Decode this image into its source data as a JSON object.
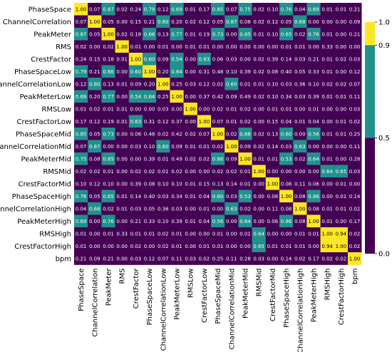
{
  "chart_data": {
    "type": "heatmap",
    "title": "",
    "xlabel": "",
    "ylabel": "",
    "labels": [
      "PhaseSpace",
      "ChannelCorrelation",
      "PeakMeter",
      "RMS",
      "CrestFactor",
      "PhaseSpaceLow",
      "ChannelCorrelationLow",
      "PeakMeterLow",
      "RMSLow",
      "CrestFactorLow",
      "PhaseSpaceMid",
      "ChannelCorrelationMid",
      "PeakMeterMid",
      "RMSMid",
      "CrestFactorMid",
      "PhaseSpaceHigh",
      "ChannelCorrelationHigh",
      "PeakMeterHigh",
      "RMSHigh",
      "CrestFactorHigh",
      "bpm"
    ],
    "matrix": [
      [
        "1.00",
        "0.07",
        "0.87",
        "0.02",
        "0.24",
        "0.79",
        "0.12",
        "0.69",
        "0.01",
        "0.17",
        "0.85",
        "0.07",
        "0.75",
        "0.02",
        "0.10",
        "0.76",
        "0.04",
        "0.69",
        "0.01",
        "0.01",
        "0.21"
      ],
      [
        "0.07",
        "1.00",
        "0.05",
        "0.00",
        "0.15",
        "0.21",
        "0.80",
        "0.20",
        "0.02",
        "0.12",
        "0.05",
        "0.87",
        "0.08",
        "0.02",
        "0.12",
        "0.05",
        "0.68",
        "0.00",
        "0.00",
        "0.00",
        "0.09"
      ],
      [
        "0.87",
        "0.05",
        "1.00",
        "0.02",
        "0.18",
        "0.66",
        "0.13",
        "0.77",
        "0.01",
        "0.19",
        "0.73",
        "0.00",
        "0.85",
        "0.01",
        "0.10",
        "0.65",
        "0.02",
        "0.76",
        "0.01",
        "0.00",
        "0.21"
      ],
      [
        "0.02",
        "0.00",
        "0.02",
        "1.00",
        "0.01",
        "0.00",
        "0.01",
        "0.00",
        "0.01",
        "0.01",
        "0.00",
        "0.00",
        "0.00",
        "0.00",
        "0.00",
        "0.01",
        "0.01",
        "0.00",
        "0.33",
        "0.00",
        "0.00"
      ],
      [
        "0.24",
        "0.15",
        "0.18",
        "0.01",
        "1.00",
        "0.60",
        "0.09",
        "0.54",
        "0.00",
        "0.63",
        "0.06",
        "0.03",
        "0.00",
        "0.02",
        "0.39",
        "0.14",
        "0.03",
        "0.21",
        "0.01",
        "0.02",
        "0.03"
      ],
      [
        "0.79",
        "0.21",
        "0.66",
        "0.00",
        "0.60",
        "1.00",
        "0.20",
        "0.84",
        "0.00",
        "0.31",
        "0.48",
        "0.10",
        "0.39",
        "0.02",
        "0.08",
        "0.40",
        "0.05",
        "0.33",
        "0.01",
        "0.00",
        "0.12"
      ],
      [
        "0.12",
        "0.80",
        "0.13",
        "0.01",
        "0.09",
        "0.20",
        "1.00",
        "0.25",
        "0.03",
        "0.12",
        "0.02",
        "0.60",
        "0.01",
        "0.01",
        "0.10",
        "0.03",
        "0.36",
        "0.10",
        "0.02",
        "0.02",
        "0.07"
      ],
      [
        "0.69",
        "0.20",
        "0.77",
        "0.00",
        "0.54",
        "0.84",
        "0.25",
        "1.00",
        "0.00",
        "0.37",
        "0.42",
        "0.09",
        "0.49",
        "0.02",
        "0.10",
        "0.34",
        "0.03",
        "0.39",
        "0.01",
        "0.01",
        "0.11"
      ],
      [
        "0.01",
        "0.02",
        "0.01",
        "0.01",
        "0.00",
        "0.00",
        "0.03",
        "0.00",
        "1.00",
        "0.00",
        "0.02",
        "0.01",
        "0.02",
        "0.00",
        "0.01",
        "0.01",
        "0.00",
        "0.01",
        "0.00",
        "0.00",
        "0.03"
      ],
      [
        "0.17",
        "0.12",
        "0.19",
        "0.01",
        "0.63",
        "0.31",
        "0.12",
        "0.37",
        "0.00",
        "1.00",
        "0.07",
        "0.01",
        "0.02",
        "0.00",
        "0.15",
        "0.04",
        "0.01",
        "0.04",
        "0.00",
        "0.01",
        "0.02"
      ],
      [
        "0.85",
        "0.05",
        "0.73",
        "0.00",
        "0.06",
        "0.48",
        "0.02",
        "0.42",
        "0.02",
        "0.07",
        "1.00",
        "0.02",
        "0.88",
        "0.02",
        "0.13",
        "0.60",
        "0.00",
        "0.56",
        "0.01",
        "0.01",
        "0.25"
      ],
      [
        "0.07",
        "0.87",
        "0.00",
        "0.00",
        "0.03",
        "0.10",
        "0.60",
        "0.09",
        "0.01",
        "0.01",
        "0.02",
        "1.00",
        "0.09",
        "0.02",
        "0.14",
        "0.03",
        "0.63",
        "0.00",
        "0.00",
        "0.00",
        "0.11"
      ],
      [
        "0.75",
        "0.08",
        "0.85",
        "0.00",
        "0.00",
        "0.39",
        "0.01",
        "0.49",
        "0.02",
        "0.02",
        "0.88",
        "0.09",
        "1.00",
        "0.01",
        "0.01",
        "0.53",
        "0.02",
        "0.64",
        "0.01",
        "0.00",
        "0.28"
      ],
      [
        "0.02",
        "0.02",
        "0.01",
        "0.00",
        "0.02",
        "0.02",
        "0.01",
        "0.02",
        "0.00",
        "0.00",
        "0.02",
        "0.02",
        "0.01",
        "1.00",
        "0.00",
        "0.00",
        "0.00",
        "0.00",
        "0.64",
        "0.65",
        "0.03"
      ],
      [
        "0.10",
        "0.12",
        "0.10",
        "0.00",
        "0.39",
        "0.08",
        "0.10",
        "0.10",
        "0.01",
        "0.15",
        "0.13",
        "0.14",
        "0.01",
        "0.00",
        "1.00",
        "0.08",
        "0.11",
        "0.06",
        "0.00",
        "0.01",
        "0.00"
      ],
      [
        "0.76",
        "0.05",
        "0.65",
        "0.01",
        "0.14",
        "0.40",
        "0.03",
        "0.34",
        "0.01",
        "0.04",
        "0.60",
        "0.03",
        "0.53",
        "0.00",
        "0.08",
        "1.00",
        "0.08",
        "0.86",
        "0.00",
        "0.01",
        "0.14"
      ],
      [
        "0.04",
        "0.68",
        "0.02",
        "0.01",
        "0.03",
        "0.05",
        "0.36",
        "0.03",
        "0.00",
        "0.01",
        "0.00",
        "0.63",
        "0.02",
        "0.00",
        "0.11",
        "0.08",
        "1.00",
        "0.08",
        "0.01",
        "0.01",
        "0.02"
      ],
      [
        "0.69",
        "0.00",
        "0.76",
        "0.00",
        "0.21",
        "0.33",
        "0.10",
        "0.39",
        "0.01",
        "0.04",
        "0.56",
        "0.00",
        "0.64",
        "0.00",
        "0.06",
        "0.86",
        "0.08",
        "1.00",
        "0.01",
        "0.00",
        "0.17"
      ],
      [
        "0.01",
        "0.00",
        "0.01",
        "0.33",
        "0.01",
        "0.01",
        "0.02",
        "0.01",
        "0.00",
        "0.00",
        "0.01",
        "0.00",
        "0.01",
        "0.64",
        "0.00",
        "0.00",
        "0.01",
        "0.01",
        "1.00",
        "0.94",
        "0.02"
      ],
      [
        "0.01",
        "0.00",
        "0.00",
        "0.00",
        "0.02",
        "0.00",
        "0.02",
        "0.01",
        "0.00",
        "0.01",
        "0.01",
        "0.00",
        "0.00",
        "0.65",
        "0.01",
        "0.01",
        "0.01",
        "0.00",
        "0.94",
        "1.00",
        "0.02"
      ],
      [
        "0.21",
        "0.09",
        "0.21",
        "0.00",
        "0.03",
        "0.12",
        "0.07",
        "0.11",
        "0.03",
        "0.02",
        "0.25",
        "0.11",
        "0.28",
        "0.03",
        "0.00",
        "0.14",
        "0.02",
        "0.17",
        "0.02",
        "0.02",
        "1.00"
      ]
    ],
    "color_bins": [
      {
        "min": 0.0,
        "max": 0.5,
        "color": "#440154"
      },
      {
        "min": 0.5,
        "max": 0.9,
        "color": "#21918c"
      },
      {
        "min": 0.9,
        "max": 1.0,
        "color": "#fde725"
      }
    ],
    "colorbar_ticks": [
      "0.0",
      "0.5",
      "0.9",
      "1.0"
    ],
    "colorbar_tick_values": [
      0.0,
      0.5,
      0.9,
      1.0
    ],
    "text_color_dark_bg": "#ffffff",
    "text_color_light_bg": "#000000"
  }
}
